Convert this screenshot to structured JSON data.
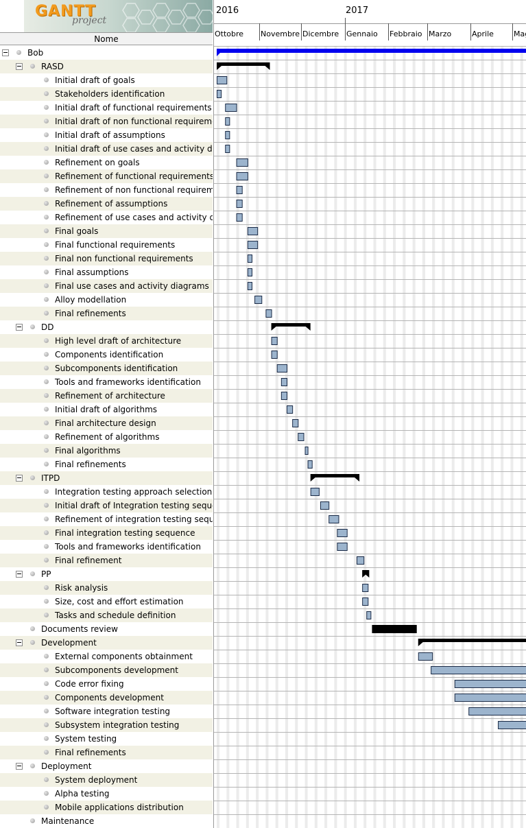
{
  "app": {
    "logo_main": "GANTT",
    "logo_sub": "project"
  },
  "tree": {
    "column_header": "Nome",
    "rows": [
      {
        "label": "Bob",
        "level": 0,
        "group": true
      },
      {
        "label": "RASD",
        "level": 1,
        "group": true
      },
      {
        "label": "Initial draft of goals",
        "level": 2
      },
      {
        "label": "Stakeholders identification",
        "level": 2
      },
      {
        "label": "Initial draft of functional requirements",
        "level": 2
      },
      {
        "label": "Initial draft of non functional requirements",
        "level": 2
      },
      {
        "label": "Initial draft of assumptions",
        "level": 2
      },
      {
        "label": "Initial draft of use cases and activity diagr...",
        "level": 2
      },
      {
        "label": "Refinement on goals",
        "level": 2
      },
      {
        "label": "Refinement of functional requirements",
        "level": 2
      },
      {
        "label": "Refinement of non functional requirements",
        "level": 2
      },
      {
        "label": "Refinement of assumptions",
        "level": 2
      },
      {
        "label": "Refinement of use cases and activity diagr...",
        "level": 2
      },
      {
        "label": "Final goals",
        "level": 2
      },
      {
        "label": "Final functional requirements",
        "level": 2
      },
      {
        "label": "Final non functional requirements",
        "level": 2
      },
      {
        "label": "Final assumptions",
        "level": 2
      },
      {
        "label": "Final use cases and activity diagrams",
        "level": 2
      },
      {
        "label": "Alloy modellation",
        "level": 2
      },
      {
        "label": "Final refinements",
        "level": 2
      },
      {
        "label": "DD",
        "level": 1,
        "group": true
      },
      {
        "label": "High level draft of architecture",
        "level": 2
      },
      {
        "label": "Components identification",
        "level": 2
      },
      {
        "label": "Subcomponents identification",
        "level": 2
      },
      {
        "label": "Tools and frameworks identification",
        "level": 2
      },
      {
        "label": "Refinement of architecture",
        "level": 2
      },
      {
        "label": "Initial draft of algorithms",
        "level": 2
      },
      {
        "label": "Final architecture design",
        "level": 2
      },
      {
        "label": "Refinement of algorithms",
        "level": 2
      },
      {
        "label": "Final algorithms",
        "level": 2
      },
      {
        "label": "Final refinements",
        "level": 2
      },
      {
        "label": "ITPD",
        "level": 1,
        "group": true
      },
      {
        "label": "Integration testing approach selection",
        "level": 2
      },
      {
        "label": "Initial draft of Integration testing sequence",
        "level": 2
      },
      {
        "label": "Refinement of integration testing sequence",
        "level": 2
      },
      {
        "label": "Final integration testing sequence",
        "level": 2
      },
      {
        "label": "Tools and frameworks identification",
        "level": 2
      },
      {
        "label": "Final refinement",
        "level": 2
      },
      {
        "label": "PP",
        "level": 1,
        "group": true
      },
      {
        "label": "Risk analysis",
        "level": 2
      },
      {
        "label": "Size, cost and effort estimation",
        "level": 2
      },
      {
        "label": "Tasks and schedule definition",
        "level": 2
      },
      {
        "label": "Documents review",
        "level": 1,
        "group": false
      },
      {
        "label": "Development",
        "level": 1,
        "group": true
      },
      {
        "label": "External components obtainment",
        "level": 2
      },
      {
        "label": "Subcomponents development",
        "level": 2
      },
      {
        "label": "Code error fixing",
        "level": 2
      },
      {
        "label": "Components development",
        "level": 2
      },
      {
        "label": "Software integration testing",
        "level": 2
      },
      {
        "label": "Subsystem integration testing",
        "level": 2
      },
      {
        "label": "System testing",
        "level": 2
      },
      {
        "label": "Final refinements",
        "level": 2
      },
      {
        "label": "Deployment",
        "level": 1,
        "group": true
      },
      {
        "label": "System deployment",
        "level": 2
      },
      {
        "label": "Alpha testing",
        "level": 2
      },
      {
        "label": "Mobile applications distribution",
        "level": 2
      },
      {
        "label": "Maintenance",
        "level": 1,
        "group": false
      }
    ]
  },
  "timeline": {
    "years": [
      "2016",
      "2017"
    ],
    "months": [
      "Ottobre",
      "Novembre",
      "Dicembre",
      "Gennaio",
      "Febbraio",
      "Marzo",
      "Aprile",
      "Maggio"
    ],
    "start_date": "2016-10-01"
  },
  "tasks": [
    {
      "row": 0,
      "type": "project",
      "start": "2016-10-01",
      "end": "2017-05-31"
    },
    {
      "row": 1,
      "type": "summary",
      "start": "2016-10-01",
      "end": "2016-11-08"
    },
    {
      "row": 2,
      "start": "2016-10-01",
      "end": "2016-10-08"
    },
    {
      "row": 3,
      "start": "2016-10-01",
      "end": "2016-10-04"
    },
    {
      "row": 4,
      "start": "2016-10-07",
      "end": "2016-10-15"
    },
    {
      "row": 5,
      "start": "2016-10-07",
      "end": "2016-10-10"
    },
    {
      "row": 6,
      "start": "2016-10-07",
      "end": "2016-10-10"
    },
    {
      "row": 7,
      "start": "2016-10-07",
      "end": "2016-10-10"
    },
    {
      "row": 8,
      "start": "2016-10-15",
      "end": "2016-10-23"
    },
    {
      "row": 9,
      "start": "2016-10-15",
      "end": "2016-10-23"
    },
    {
      "row": 10,
      "start": "2016-10-15",
      "end": "2016-10-19"
    },
    {
      "row": 11,
      "start": "2016-10-15",
      "end": "2016-10-19"
    },
    {
      "row": 12,
      "start": "2016-10-15",
      "end": "2016-10-19"
    },
    {
      "row": 13,
      "start": "2016-10-23",
      "end": "2016-10-30"
    },
    {
      "row": 14,
      "start": "2016-10-23",
      "end": "2016-10-30"
    },
    {
      "row": 15,
      "start": "2016-10-23",
      "end": "2016-10-26"
    },
    {
      "row": 16,
      "start": "2016-10-23",
      "end": "2016-10-26"
    },
    {
      "row": 17,
      "start": "2016-10-23",
      "end": "2016-10-26"
    },
    {
      "row": 18,
      "start": "2016-10-28",
      "end": "2016-11-02"
    },
    {
      "row": 19,
      "start": "2016-11-05",
      "end": "2016-11-09"
    },
    {
      "row": 20,
      "type": "summary",
      "start": "2016-11-09",
      "end": "2016-12-07"
    },
    {
      "row": 21,
      "start": "2016-11-09",
      "end": "2016-11-13"
    },
    {
      "row": 22,
      "start": "2016-11-09",
      "end": "2016-11-13"
    },
    {
      "row": 23,
      "start": "2016-11-13",
      "end": "2016-11-20"
    },
    {
      "row": 24,
      "start": "2016-11-16",
      "end": "2016-11-20"
    },
    {
      "row": 25,
      "start": "2016-11-16",
      "end": "2016-11-20"
    },
    {
      "row": 26,
      "start": "2016-11-20",
      "end": "2016-11-24"
    },
    {
      "row": 27,
      "start": "2016-11-24",
      "end": "2016-11-28"
    },
    {
      "row": 28,
      "start": "2016-11-28",
      "end": "2016-12-02"
    },
    {
      "row": 29,
      "start": "2016-12-03",
      "end": "2016-12-05"
    },
    {
      "row": 30,
      "start": "2016-12-05",
      "end": "2016-12-08"
    },
    {
      "row": 31,
      "type": "summary",
      "start": "2016-12-07",
      "end": "2017-01-11"
    },
    {
      "row": 32,
      "start": "2016-12-07",
      "end": "2016-12-13"
    },
    {
      "row": 33,
      "start": "2016-12-14",
      "end": "2016-12-20"
    },
    {
      "row": 34,
      "start": "2016-12-20",
      "end": "2016-12-27"
    },
    {
      "row": 35,
      "start": "2016-12-26",
      "end": "2017-01-02"
    },
    {
      "row": 36,
      "start": "2016-12-26",
      "end": "2017-01-02"
    },
    {
      "row": 37,
      "start": "2017-01-09",
      "end": "2017-01-14"
    },
    {
      "row": 38,
      "type": "summary",
      "start": "2017-01-13",
      "end": "2017-01-18"
    },
    {
      "row": 39,
      "start": "2017-01-13",
      "end": "2017-01-17"
    },
    {
      "row": 40,
      "start": "2017-01-13",
      "end": "2017-01-17"
    },
    {
      "row": 41,
      "start": "2017-01-16",
      "end": "2017-01-19"
    },
    {
      "row": 42,
      "type": "block",
      "start": "2017-01-20",
      "end": "2017-02-21"
    },
    {
      "row": 43,
      "type": "summary",
      "start": "2017-02-22",
      "end": "2017-05-31"
    },
    {
      "row": 44,
      "start": "2017-02-22",
      "end": "2017-03-04"
    },
    {
      "row": 45,
      "start": "2017-03-03",
      "end": "2017-05-31"
    },
    {
      "row": 46,
      "start": "2017-03-20",
      "end": "2017-05-31"
    },
    {
      "row": 47,
      "start": "2017-03-20",
      "end": "2017-05-31"
    },
    {
      "row": 48,
      "start": "2017-03-30",
      "end": "2017-05-31"
    },
    {
      "row": 49,
      "start": "2017-04-20",
      "end": "2017-05-31"
    }
  ],
  "colors": {
    "task_fill": "#9cb4cd",
    "task_border": "#1a2a46",
    "project_bar": "#0000ee",
    "summary_bar": "#000000",
    "row_alt": "#f2f1e4",
    "weekend_shade": "#ececec"
  }
}
